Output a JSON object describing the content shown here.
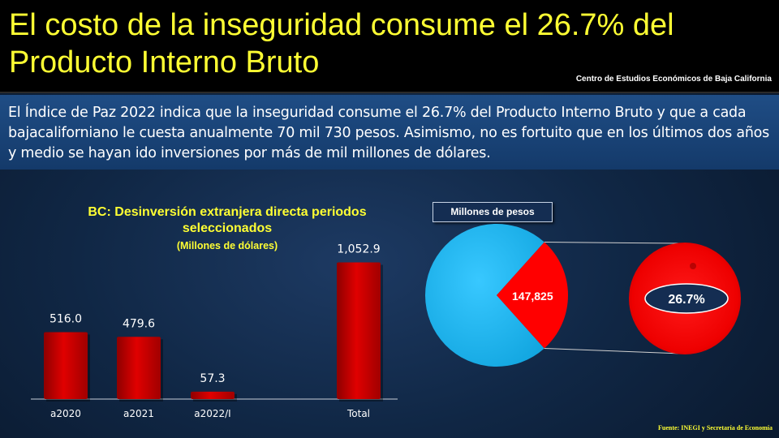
{
  "header": {
    "title": "El costo de la inseguridad consume el 26.7% del Producto Interno Bruto",
    "source_top": "Centro de Estudios Económicos de Baja California"
  },
  "intro": "El Índice de Paz 2022 indica que la inseguridad consume el 26.7% del Producto Interno Bruto y que a cada bajacaliforniano le cuesta anualmente 70 mil 730 pesos. Asimismo, no es fortuito que en los últimos dos años y medio se hayan ido inversiones por más de mil millones de dólares.",
  "footer_source": "Fuente: INEGI y Secretaría de Economía",
  "colors": {
    "title": "#ffff33",
    "bar": "#d80000",
    "pie_main": "#1ab8f0",
    "pie_slice": "#ff0000",
    "badge": "#142d52"
  },
  "chart_data": [
    {
      "type": "bar",
      "title": "BC: Desinversión extranjera directa periodos seleccionados",
      "subtitle": "(Millones  de dólares)",
      "categories": [
        "a2020",
        "a2021",
        "a2022/I",
        "Total"
      ],
      "values": [
        516.0,
        479.6,
        57.3,
        1052.9
      ],
      "value_labels": [
        "516.0",
        "479.6",
        "57.3",
        "1,052.9"
      ],
      "ylim": [
        0,
        1100
      ],
      "grid": false
    },
    {
      "type": "pie",
      "label": "Millones de pesos",
      "slice_label": "147,825",
      "slice_percent": 26.7,
      "callout_label": "26.7%"
    }
  ]
}
